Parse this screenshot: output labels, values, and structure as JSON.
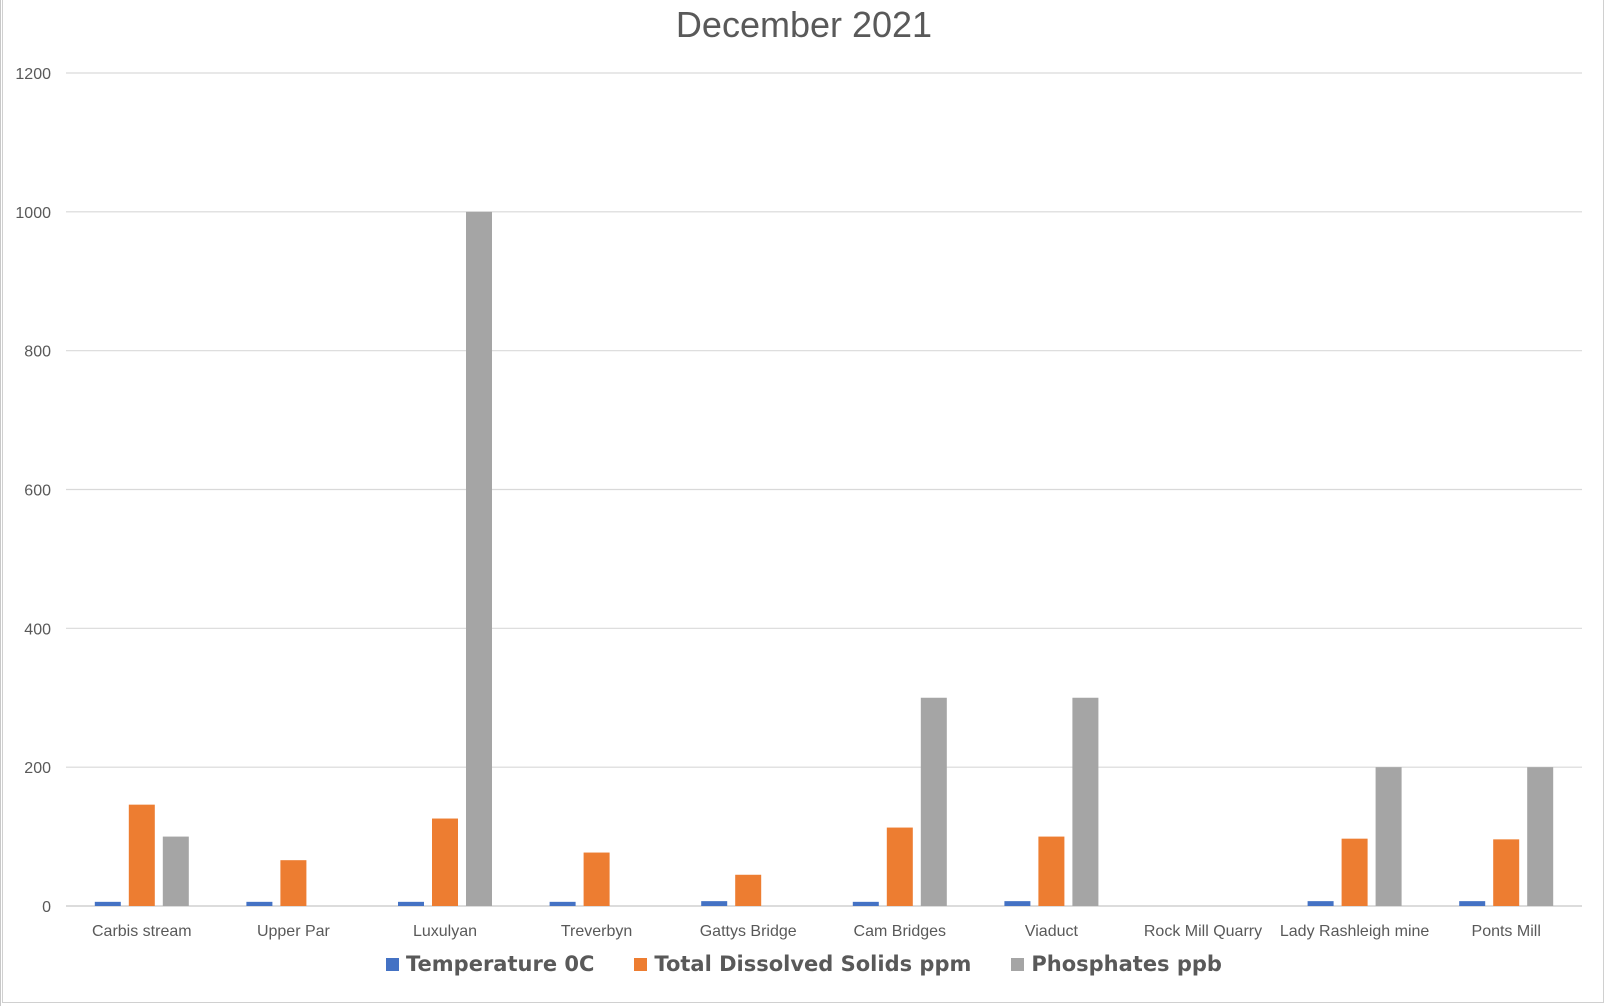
{
  "chart_data": {
    "type": "bar",
    "title": "December 2021",
    "xlabel": "",
    "ylabel": "",
    "ylim": [
      0,
      1200
    ],
    "yticks": [
      0,
      200,
      400,
      600,
      800,
      1000,
      1200
    ],
    "grid": true,
    "legend_position": "bottom",
    "categories": [
      "Carbis stream",
      "Upper Par",
      "Luxulyan",
      "Treverbyn",
      "Gattys Bridge",
      "Cam Bridges",
      "Viaduct",
      "Rock Mill Quarry",
      "Lady Rashleigh mine",
      "Ponts Mill"
    ],
    "series": [
      {
        "name": "Temperature 0C",
        "color": "#4472C4",
        "values": [
          6,
          6,
          6,
          6,
          7,
          6,
          7,
          null,
          7,
          7
        ]
      },
      {
        "name": "Total Dissolved Solids ppm",
        "color": "#ED7D31",
        "values": [
          146,
          66,
          126,
          77,
          45,
          113,
          100,
          null,
          97,
          96
        ]
      },
      {
        "name": "Phosphates ppb",
        "color": "#A5A5A5",
        "values": [
          100,
          null,
          1000,
          null,
          null,
          300,
          300,
          null,
          200,
          200
        ]
      }
    ]
  },
  "colors": {
    "grid": "#d9d9d9",
    "axis_text": "#595959"
  }
}
